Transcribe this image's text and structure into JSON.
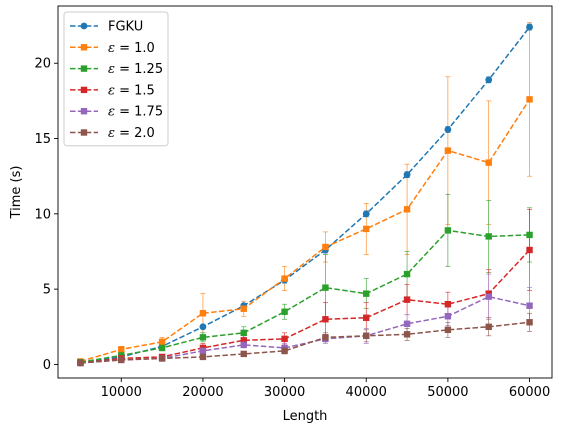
{
  "chart_data": {
    "type": "line",
    "xlabel": "Length",
    "ylabel": "Time (s)",
    "xlim": [
      2250,
      62750
    ],
    "ylim": [
      -0.9,
      23.8
    ],
    "xticks": [
      10000,
      20000,
      30000,
      40000,
      50000,
      60000
    ],
    "yticks": [
      0,
      5,
      10,
      15,
      20
    ],
    "grid": false,
    "legend_position": "top-left",
    "x": [
      5000,
      10000,
      15000,
      20000,
      25000,
      30000,
      35000,
      40000,
      45000,
      50000,
      55000,
      60000
    ],
    "series": [
      {
        "name": "FGKU",
        "label_prefix": "",
        "label_value": "FGKU",
        "color": "#1f77b4",
        "marker": "circle",
        "values": [
          0.1,
          0.5,
          1.2,
          2.5,
          3.9,
          5.6,
          7.6,
          10.0,
          12.6,
          15.6,
          18.9,
          22.4
        ],
        "errors": [
          0.05,
          0.1,
          0.1,
          0.1,
          0.15,
          0.2,
          0.2,
          0.2,
          0.2,
          0.2,
          0.2,
          0.2
        ]
      },
      {
        "name": "ε = 1.0",
        "label_prefix": "ε",
        "label_value": " = 1.0",
        "color": "#ff7f0e",
        "marker": "square",
        "values": [
          0.2,
          1.0,
          1.5,
          3.4,
          3.7,
          5.7,
          7.8,
          9.0,
          10.3,
          14.2,
          13.4,
          17.6
        ],
        "errors": [
          0.1,
          0.2,
          0.3,
          1.3,
          0.5,
          0.8,
          1.0,
          1.7,
          3.0,
          4.9,
          4.1,
          5.1
        ]
      },
      {
        "name": "ε = 1.25",
        "label_prefix": "ε",
        "label_value": " = 1.25",
        "color": "#2ca02c",
        "marker": "square",
        "values": [
          0.15,
          0.6,
          1.1,
          1.8,
          2.1,
          3.5,
          5.1,
          4.7,
          6.0,
          8.9,
          8.5,
          8.6
        ],
        "errors": [
          0.05,
          0.1,
          0.2,
          0.3,
          0.4,
          0.5,
          2.2,
          1.0,
          1.5,
          2.4,
          2.4,
          1.8
        ]
      },
      {
        "name": "ε = 1.5",
        "label_prefix": "ε",
        "label_value": " = 1.5",
        "color": "#d62728",
        "marker": "square",
        "values": [
          0.1,
          0.4,
          0.5,
          1.1,
          1.6,
          1.7,
          3.0,
          3.1,
          4.3,
          4.0,
          4.7,
          7.6
        ],
        "errors": [
          0.05,
          0.1,
          0.1,
          0.3,
          0.3,
          0.4,
          1.1,
          1.0,
          1.0,
          0.8,
          1.6,
          2.7
        ]
      },
      {
        "name": "ε = 1.75",
        "label_prefix": "ε",
        "label_value": " = 1.75",
        "color": "#9467bd",
        "marker": "square",
        "values": [
          0.1,
          0.3,
          0.4,
          0.9,
          1.3,
          1.1,
          1.7,
          1.9,
          2.7,
          3.2,
          4.5,
          3.9
        ],
        "errors": [
          0.05,
          0.1,
          0.1,
          0.2,
          0.2,
          0.3,
          0.3,
          0.5,
          0.6,
          0.6,
          1.5,
          1.2
        ]
      },
      {
        "name": "ε = 2.0",
        "label_prefix": "ε",
        "label_value": " = 2.0",
        "color": "#8c564b",
        "marker": "square",
        "values": [
          0.1,
          0.3,
          0.4,
          0.5,
          0.7,
          0.9,
          1.8,
          1.9,
          2.0,
          2.3,
          2.5,
          2.8
        ],
        "errors": [
          0.05,
          0.05,
          0.1,
          0.1,
          0.15,
          0.2,
          0.3,
          0.4,
          0.4,
          0.5,
          0.6,
          0.6
        ]
      }
    ]
  }
}
